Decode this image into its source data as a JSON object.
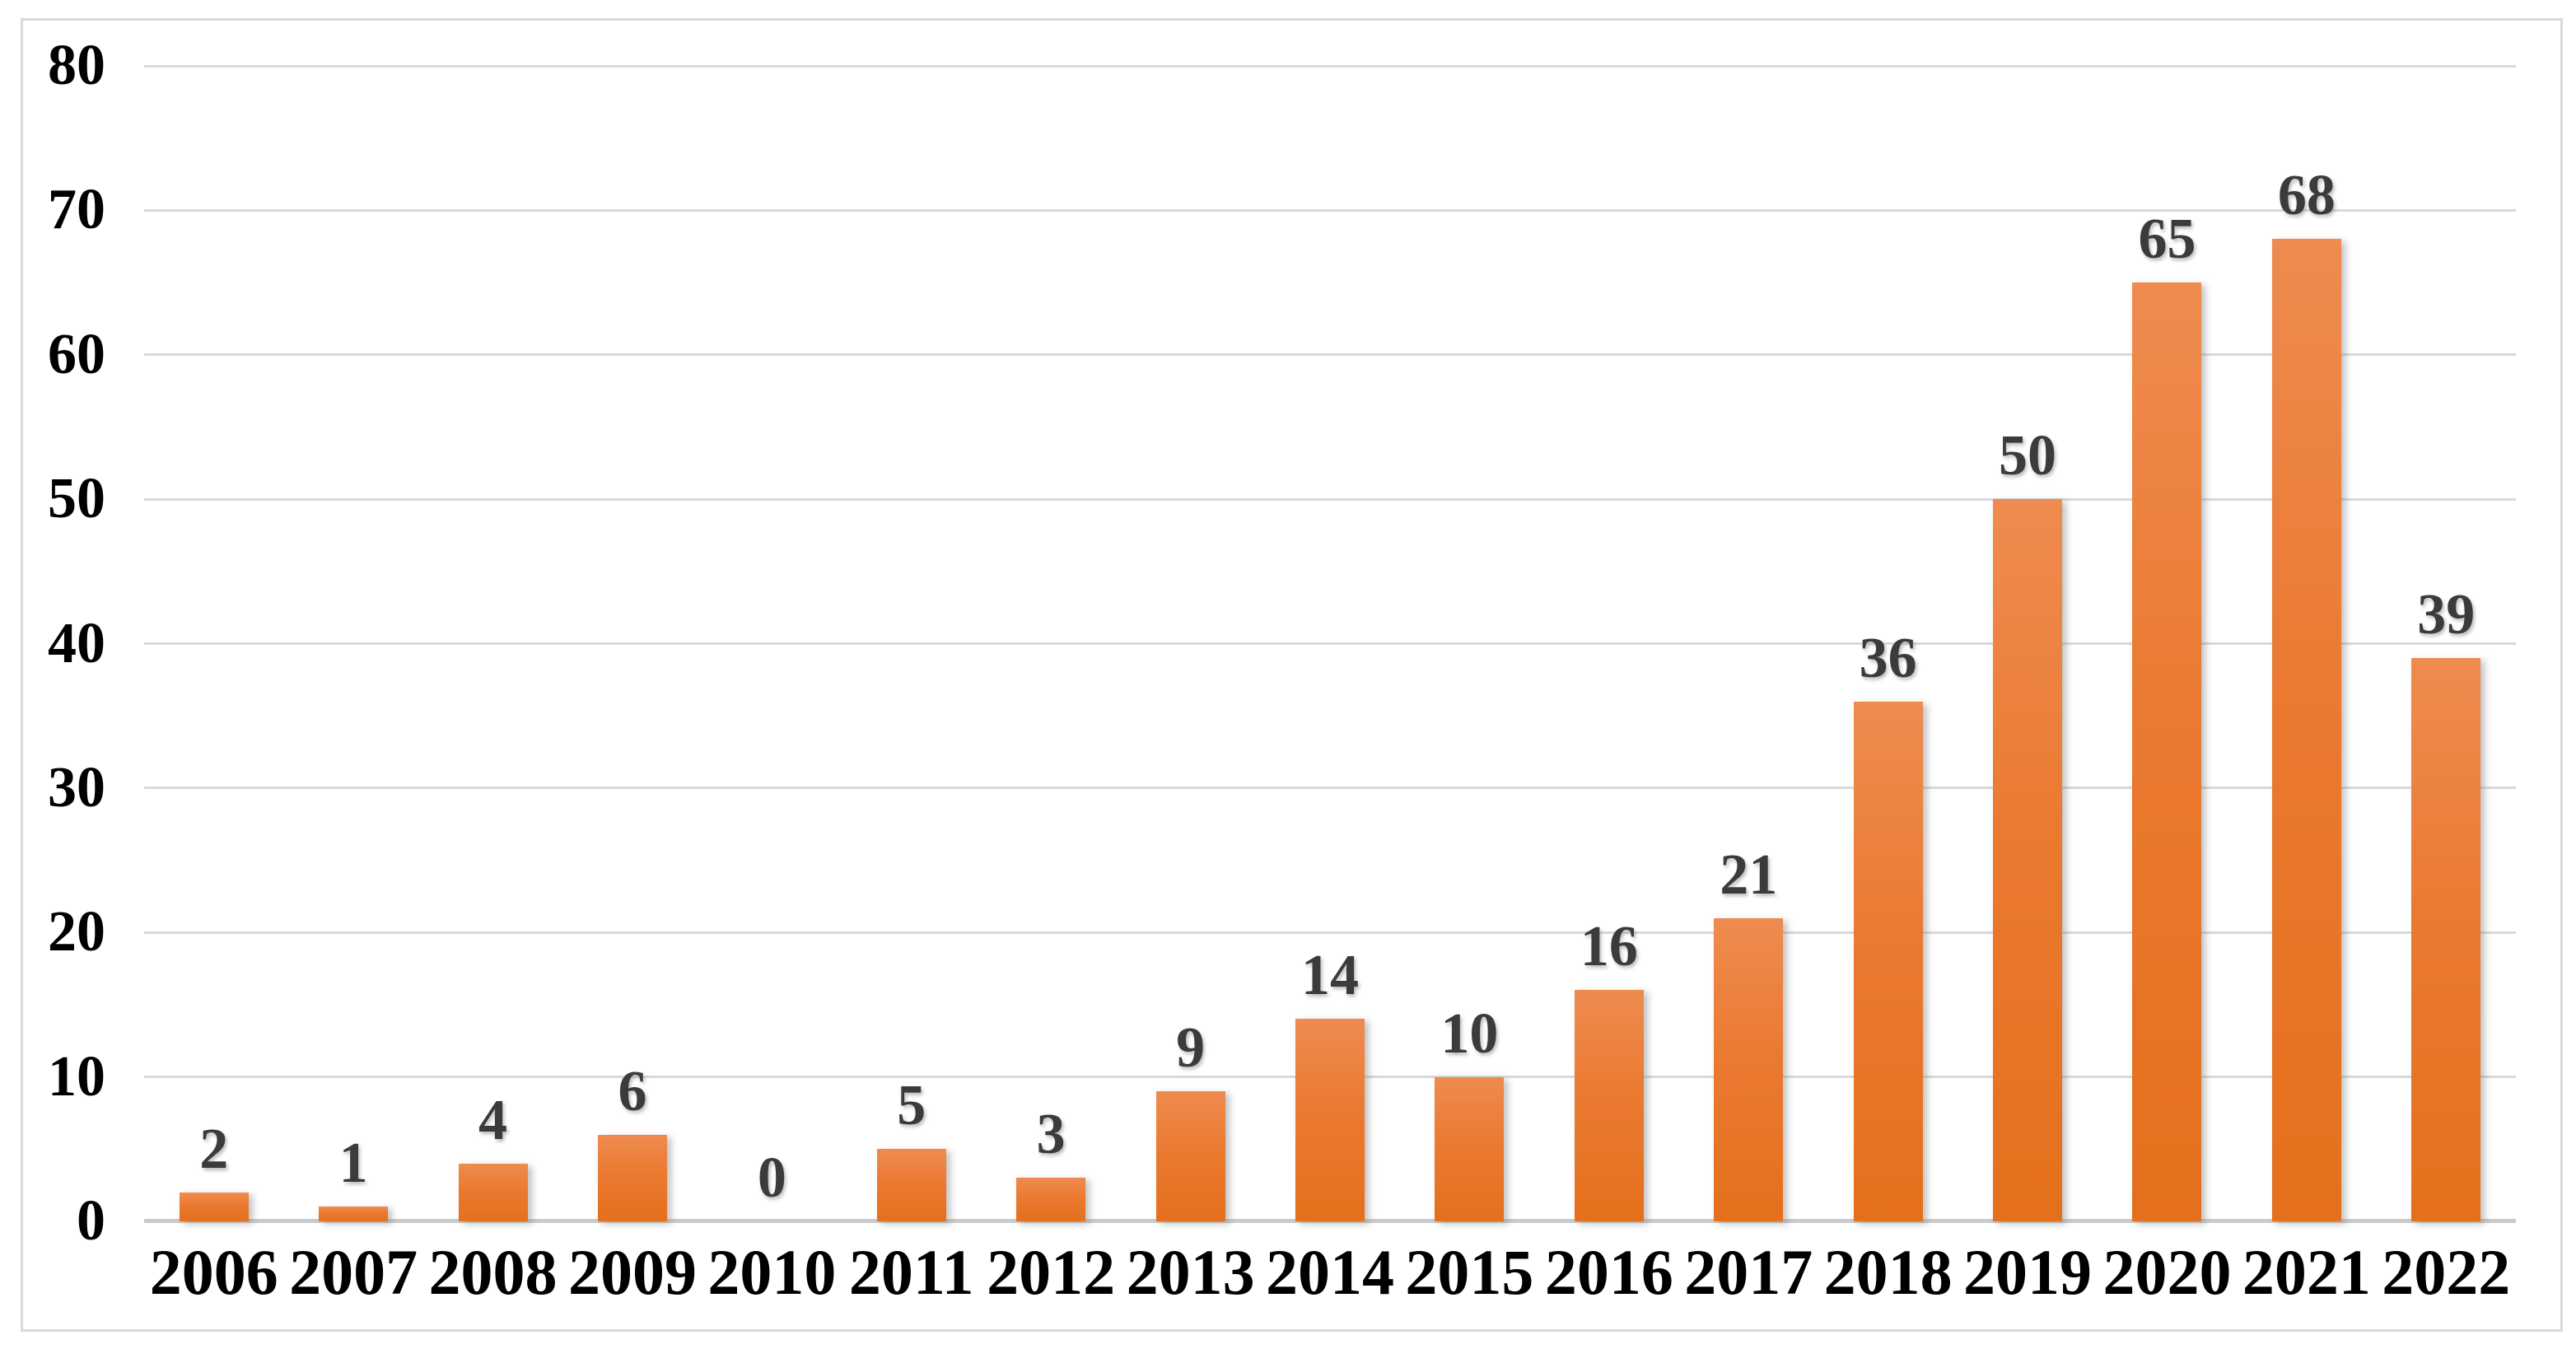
{
  "chart_data": {
    "type": "bar",
    "title": "",
    "categories": [
      "2006",
      "2007",
      "2008",
      "2009",
      "2010",
      "2011",
      "2012",
      "2013",
      "2014",
      "2015",
      "2016",
      "2017",
      "2018",
      "2019",
      "2020",
      "2021",
      "2022"
    ],
    "values": [
      2,
      1,
      4,
      6,
      0,
      5,
      3,
      9,
      14,
      10,
      16,
      21,
      36,
      50,
      65,
      68,
      39
    ],
    "series_name": "",
    "xlabel": "",
    "ylabel": "",
    "ylim": [
      0,
      80
    ],
    "y_tick_step": 10,
    "y_tick_labels": [
      "0",
      "10",
      "20",
      "30",
      "40",
      "50",
      "60",
      "70",
      "80"
    ],
    "grid": true,
    "legend": false,
    "colors": {
      "bar_gradient_top": "#ef8b50",
      "bar_gradient_mid": "#ea7a31",
      "bar_gradient_bottom": "#e4701c",
      "data_label": "#3b3b3b",
      "axis_label": "#000000",
      "gridline": "#d9d9d9",
      "baseline": "#cbcbcb",
      "frame_border": "#d9d9d9",
      "background": "#ffffff"
    }
  }
}
